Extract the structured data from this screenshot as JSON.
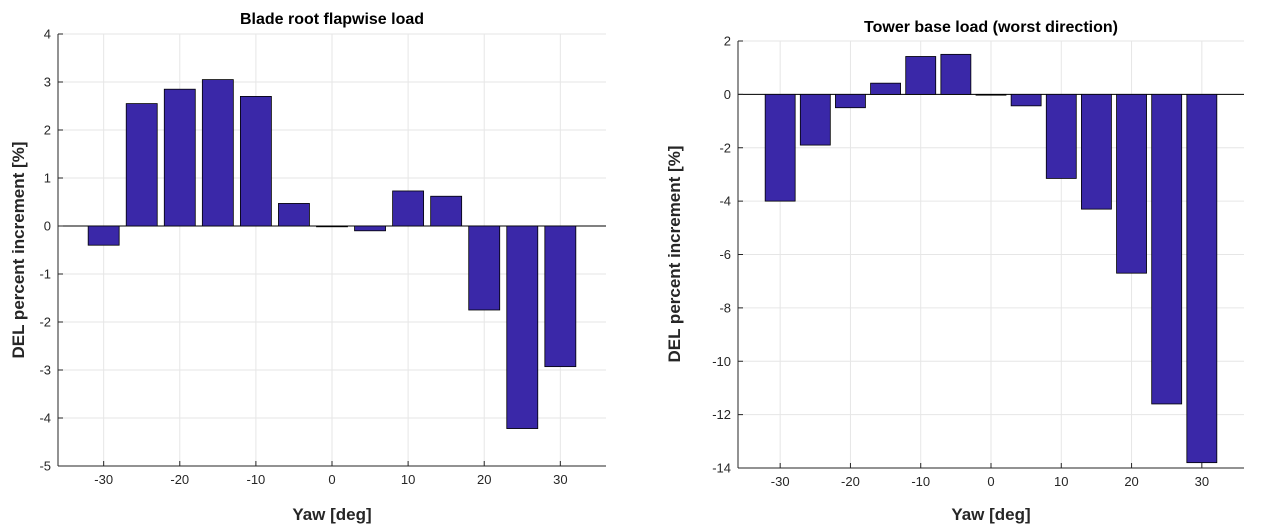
{
  "chart_data": [
    {
      "type": "bar",
      "title": "Blade root flapwise load",
      "xlabel": "Yaw [deg]",
      "ylabel": "DEL percent increment [%]",
      "x": [
        -30,
        -25,
        -20,
        -15,
        -10,
        -5,
        0,
        5,
        10,
        15,
        20,
        25,
        30
      ],
      "values": [
        -0.4,
        2.55,
        2.85,
        3.05,
        2.7,
        0.47,
        0.0,
        -0.1,
        0.73,
        0.62,
        -1.75,
        -4.22,
        -2.93
      ],
      "xlim": [
        -36,
        36
      ],
      "ylim": [
        -5,
        4
      ],
      "xticks": [
        "-30",
        "-20",
        "-10",
        "0",
        "10",
        "20",
        "30"
      ],
      "yticks": [
        "4",
        "3",
        "2",
        "1",
        "0",
        "-1",
        "-2",
        "-3",
        "-4",
        "-5"
      ],
      "grid": true,
      "bar_color": "#3a28a8"
    },
    {
      "type": "bar",
      "title": "Tower base load (worst direction)",
      "xlabel": "Yaw [deg]",
      "ylabel": "DEL percent increment [%]",
      "x": [
        -30,
        -25,
        -20,
        -15,
        -10,
        -5,
        0,
        5,
        10,
        15,
        20,
        25,
        30
      ],
      "values": [
        -4.0,
        -1.9,
        -0.5,
        0.42,
        1.42,
        1.5,
        0.0,
        -0.43,
        -3.15,
        -4.3,
        -6.7,
        -11.6,
        -13.8
      ],
      "xlim": [
        -36,
        36
      ],
      "ylim": [
        -14,
        2
      ],
      "xticks": [
        "-30",
        "-20",
        "-10",
        "0",
        "10",
        "20",
        "30"
      ],
      "yticks": [
        "2",
        "0",
        "-2",
        "-4",
        "-6",
        "-8",
        "-10",
        "-12",
        "-14"
      ],
      "grid": true,
      "bar_color": "#3a28a8"
    }
  ]
}
